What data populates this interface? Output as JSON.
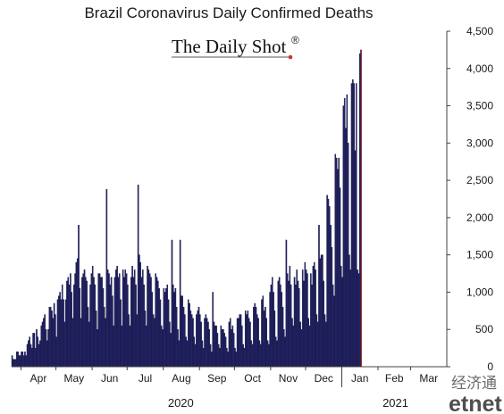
{
  "brand": {
    "text": "The Daily Shot",
    "mark": "®",
    "accent": "#c0392b"
  },
  "watermark": {
    "line1": "经济通",
    "line2": "etnet"
  },
  "colors": {
    "bar": "#24246e",
    "bar_highlight": "#9b1c1c",
    "axis": "#404040",
    "grid": "none"
  },
  "chart_data": {
    "type": "bar",
    "title": "Brazil Coronavirus Daily Confirmed Deaths",
    "xlabel": "",
    "ylabel": "",
    "ylim": [
      0,
      4500
    ],
    "y_axis_side": "right",
    "y_ticks": [
      0,
      500,
      1000,
      1500,
      2000,
      2500,
      3000,
      3500,
      4000,
      4500
    ],
    "y_tick_labels": [
      "0",
      "500",
      "1,000",
      "1,500",
      "2,000",
      "2,500",
      "3,000",
      "3,500",
      "4,000",
      "4,500"
    ],
    "grid": false,
    "legend": "none",
    "x_months": [
      {
        "label": "Apr",
        "start": "2020-04-01"
      },
      {
        "label": "May",
        "start": "2020-05-01"
      },
      {
        "label": "Jun",
        "start": "2020-06-01"
      },
      {
        "label": "Jul",
        "start": "2020-07-01"
      },
      {
        "label": "Aug",
        "start": "2020-08-01"
      },
      {
        "label": "Sep",
        "start": "2020-09-01"
      },
      {
        "label": "Oct",
        "start": "2020-10-01"
      },
      {
        "label": "Nov",
        "start": "2020-11-01"
      },
      {
        "label": "Dec",
        "start": "2020-12-01"
      },
      {
        "label": "Jan",
        "start": "2021-01-01"
      },
      {
        "label": "Feb",
        "start": "2021-02-01"
      },
      {
        "label": "Mar",
        "start": "2021-03-01"
      }
    ],
    "x_years": [
      {
        "label": "2020",
        "center": "2020-08-16"
      },
      {
        "label": "2021",
        "center": "2021-02-16"
      }
    ],
    "year_divider": "2021-01-01",
    "x_range": [
      "2020-03-24",
      "2021-03-31"
    ],
    "series": [
      {
        "start_date": "2020-03-24",
        "values": [
          150,
          100,
          100,
          100,
          200,
          200,
          150,
          150,
          200,
          200,
          150,
          200,
          150,
          300,
          350,
          400,
          300,
          250,
          450,
          450,
          250,
          500,
          400,
          300,
          350,
          550,
          600,
          650,
          700,
          500,
          350,
          500,
          800,
          800,
          750,
          650,
          850,
          700,
          400,
          900,
          950,
          1000,
          900,
          1100,
          900,
          600,
          900,
          1150,
          1200,
          1100,
          1250,
          1000,
          650,
          1100,
          1250,
          1400,
          1450,
          1900,
          1050,
          650,
          1200,
          1250,
          1300,
          1200,
          1150,
          800,
          600,
          1100,
          1250,
          1350,
          1200,
          1100,
          750,
          500,
          1250,
          1250,
          1200,
          1200,
          1050,
          800,
          650,
          2380,
          1300,
          1250,
          1100,
          1200,
          950,
          550,
          1200,
          1300,
          1350,
          1200,
          1250,
          900,
          550,
          1300,
          1200,
          1300,
          1250,
          1100,
          700,
          550,
          1200,
          1350,
          1200,
          1300,
          1100,
          700,
          2440,
          1500,
          1400,
          1200,
          1300,
          1100,
          750,
          550,
          1350,
          1300,
          1250,
          1200,
          1000,
          700,
          650,
          1250,
          1200,
          1150,
          1050,
          900,
          550,
          500,
          1050,
          1000,
          1050,
          1100,
          900,
          600,
          450,
          1700,
          1100,
          1000,
          1050,
          800,
          500,
          350,
          1700,
          950,
          950,
          800,
          700,
          400,
          350,
          900,
          850,
          750,
          700,
          650,
          400,
          300,
          700,
          750,
          800,
          700,
          600,
          350,
          250,
          650,
          700,
          650,
          600,
          500,
          300,
          200,
          1000,
          600,
          550,
          550,
          450,
          300,
          250,
          550,
          500,
          500,
          450,
          400,
          250,
          200,
          600,
          650,
          500,
          550,
          450,
          250,
          200,
          650,
          650,
          700,
          700,
          550,
          300,
          250,
          750,
          700,
          750,
          650,
          600,
          350,
          300,
          800,
          850,
          800,
          700,
          650,
          350,
          300,
          900,
          950,
          750,
          800,
          650,
          350,
          300,
          1000,
          1100,
          1200,
          1000,
          750,
          400,
          350,
          1150,
          1200,
          1100,
          1000,
          800,
          500,
          400,
          1700,
          1250,
          1150,
          1350,
          1100,
          650,
          550,
          1200,
          1100,
          1300,
          1150,
          1050,
          600,
          500,
          1300,
          1150,
          1400,
          1300,
          1250,
          650,
          550,
          1250,
          1100,
          1350,
          1400,
          1300,
          700,
          600,
          1900,
          1450,
          1500,
          1500,
          1150,
          700,
          600,
          2300,
          2250,
          2150,
          1900,
          1600,
          1100,
          950,
          2850,
          2800,
          2650,
          2800,
          2400,
          1350,
          1200,
          3500,
          3600,
          3200,
          3650,
          3000,
          1500,
          1300,
          3800,
          3850,
          3800,
          2900,
          3800,
          1300,
          1250,
          4200,
          4250
        ],
        "highlight_last": 1
      }
    ]
  }
}
